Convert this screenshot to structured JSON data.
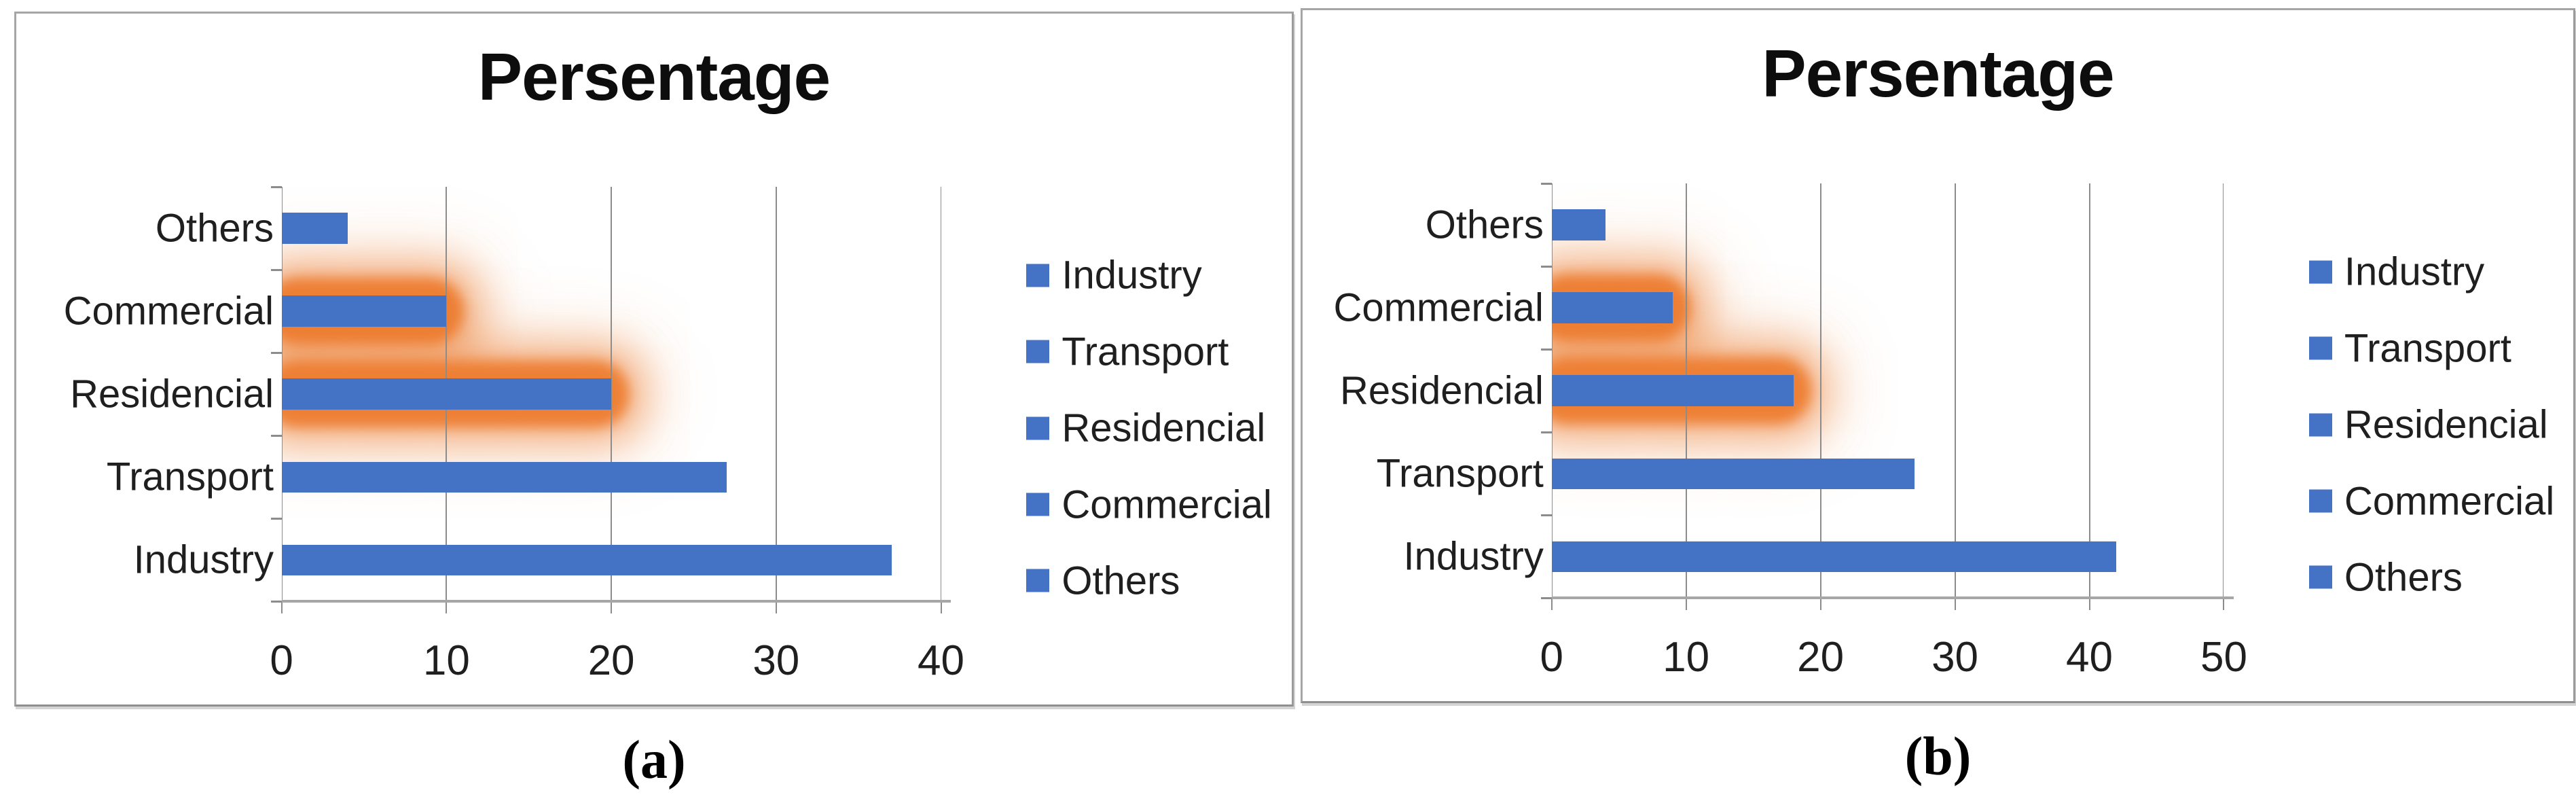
{
  "page_background": "#ffffff",
  "captions": [
    "(a)",
    "(b)"
  ],
  "colors": {
    "bar": "#4472C4",
    "glow": "#ED7D31",
    "gridline": "#8c8c8c",
    "axis": "#a6a6a6",
    "tick": "#8c8c8c",
    "text": "#1f1f1f",
    "title": "#0d0d0d",
    "panel_border": "#a6a6a6"
  },
  "chart_data": [
    {
      "type": "bar",
      "orientation": "horizontal",
      "title": "Persentage",
      "categories": [
        "Others",
        "Commercial",
        "Residencial",
        "Transport",
        "Industry"
      ],
      "values": [
        4,
        10,
        20,
        27,
        37
      ],
      "highlighted_categories": [
        "Commercial",
        "Residencial"
      ],
      "xlim": [
        0,
        40
      ],
      "xticks": [
        0,
        10,
        20,
        30,
        40
      ],
      "grid": "vertical",
      "legend_position": "right",
      "legend": [
        "Industry",
        "Transport",
        "Residencial",
        "Commercial",
        "Others"
      ]
    },
    {
      "type": "bar",
      "orientation": "horizontal",
      "title": "Persentage",
      "categories": [
        "Others",
        "Commercial",
        "Residencial",
        "Transport",
        "Industry"
      ],
      "values": [
        4,
        9,
        18,
        27,
        42
      ],
      "highlighted_categories": [
        "Commercial",
        "Residencial"
      ],
      "xlim": [
        0,
        50
      ],
      "xticks": [
        0,
        10,
        20,
        30,
        40,
        50
      ],
      "grid": "vertical",
      "legend_position": "right",
      "legend": [
        "Industry",
        "Transport",
        "Residencial",
        "Commercial",
        "Others"
      ]
    }
  ]
}
